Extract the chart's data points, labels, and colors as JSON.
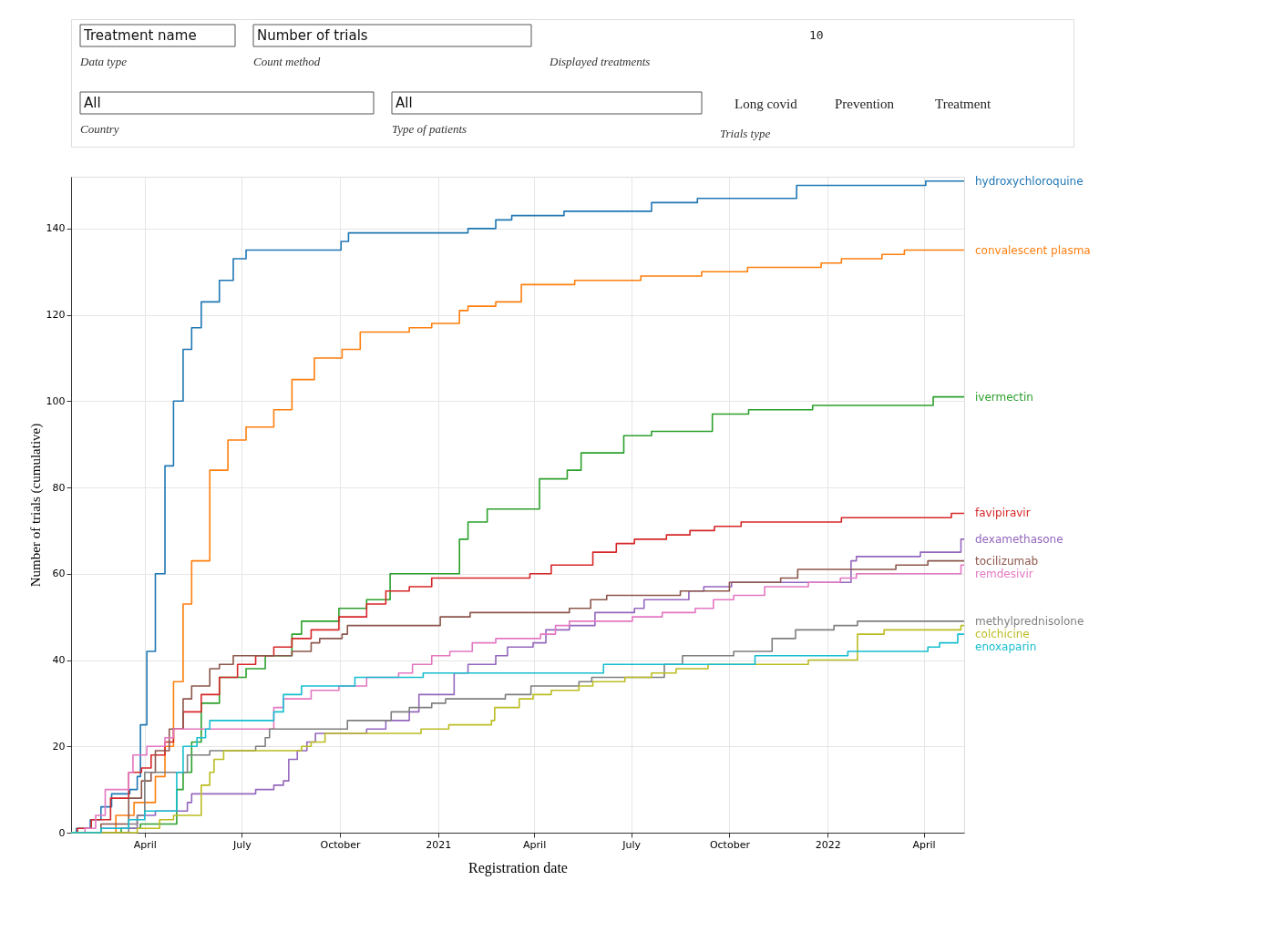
{
  "chart_data": {
    "type": "step",
    "xlabel": "Registration date",
    "ylabel": "Number of trials (cumulative)",
    "annotations": [
      "Treatment name",
      "Number of trials",
      "10",
      "Data type",
      "Count method",
      "Displayed treatments",
      "All",
      "All",
      "Country",
      "Type of patients",
      "Long covid",
      "Prevention",
      "Treatment",
      "Trials type"
    ],
    "xlim": [
      "2020-01-23",
      "2022-05-09"
    ],
    "ylim": [
      0,
      152
    ],
    "xticks": [
      {
        "value": "2020-04-01",
        "label": "April"
      },
      {
        "value": "2020-07-01",
        "label": "July"
      },
      {
        "value": "2020-10-01",
        "label": "October"
      },
      {
        "value": "2021-01-01",
        "label": "2021"
      },
      {
        "value": "2021-04-01",
        "label": "April"
      },
      {
        "value": "2021-07-01",
        "label": "July"
      },
      {
        "value": "2021-10-01",
        "label": "October"
      },
      {
        "value": "2022-01-01",
        "label": "2022"
      },
      {
        "value": "2022-04-01",
        "label": "April"
      }
    ],
    "yticks": [
      0,
      20,
      40,
      60,
      80,
      100,
      120,
      140
    ],
    "grid": true,
    "legend": false,
    "line_style": "solid",
    "marker": "none",
    "series": [
      {
        "name": "hydroxychloroquine",
        "color": "#1f77b4",
        "x": [
          "2020-01-23",
          "2020-01-28",
          "2020-02-10",
          "2020-02-20",
          "2020-03-01",
          "2020-03-18",
          "2020-03-25",
          "2020-03-28",
          "2020-04-03",
          "2020-04-11",
          "2020-04-20",
          "2020-04-28",
          "2020-05-07",
          "2020-05-15",
          "2020-05-24",
          "2020-06-10",
          "2020-06-23",
          "2020-07-05",
          "2020-10-02",
          "2020-10-09",
          "2021-01-29",
          "2021-02-24",
          "2021-03-11",
          "2021-04-29",
          "2021-07-20",
          "2021-09-01",
          "2021-12-03",
          "2022-04-03",
          "2022-05-09"
        ],
        "values": [
          0,
          1,
          3,
          6,
          9,
          10,
          13,
          25,
          42,
          60,
          85,
          100,
          112,
          117,
          123,
          128,
          133,
          135,
          137,
          139,
          140,
          142,
          143,
          144,
          146,
          147,
          150,
          151,
          151
        ]
      },
      {
        "name": "convalescent plasma",
        "color": "#ff7f0e",
        "x": [
          "2020-01-23",
          "2020-03-05",
          "2020-03-22",
          "2020-04-11",
          "2020-04-20",
          "2020-04-28",
          "2020-05-07",
          "2020-05-15",
          "2020-06-01",
          "2020-06-18",
          "2020-07-05",
          "2020-07-31",
          "2020-08-17",
          "2020-09-07",
          "2020-10-03",
          "2020-10-20",
          "2020-12-05",
          "2020-12-26",
          "2021-01-21",
          "2021-01-29",
          "2021-02-24",
          "2021-03-20",
          "2021-05-09",
          "2021-07-10",
          "2021-09-05",
          "2021-10-18",
          "2021-12-26",
          "2022-01-14",
          "2022-02-21",
          "2022-03-14",
          "2022-05-09"
        ],
        "values": [
          0,
          4,
          7,
          13,
          20,
          35,
          53,
          63,
          84,
          91,
          94,
          98,
          105,
          110,
          112,
          116,
          117,
          118,
          121,
          122,
          123,
          127,
          128,
          129,
          130,
          131,
          132,
          133,
          134,
          135,
          135
        ]
      },
      {
        "name": "ivermectin",
        "color": "#2ca02c",
        "x": [
          "2020-01-23",
          "2020-03-10",
          "2020-03-28",
          "2020-05-01",
          "2020-05-07",
          "2020-05-15",
          "2020-05-24",
          "2020-06-10",
          "2020-07-05",
          "2020-07-23",
          "2020-08-17",
          "2020-08-26",
          "2020-09-30",
          "2020-10-26",
          "2020-11-17",
          "2021-01-21",
          "2021-01-29",
          "2021-02-16",
          "2021-04-06",
          "2021-05-02",
          "2021-05-15",
          "2021-06-24",
          "2021-07-20",
          "2021-09-15",
          "2021-10-19",
          "2021-12-18",
          "2022-04-10",
          "2022-05-09"
        ],
        "values": [
          0,
          1,
          2,
          10,
          14,
          21,
          30,
          36,
          38,
          41,
          46,
          49,
          52,
          54,
          60,
          68,
          72,
          75,
          82,
          84,
          88,
          92,
          93,
          97,
          98,
          99,
          101,
          101
        ]
      },
      {
        "name": "favipiravir",
        "color": "#d62728",
        "x": [
          "2020-01-23",
          "2020-01-29",
          "2020-02-11",
          "2020-02-29",
          "2020-03-17",
          "2020-03-29",
          "2020-04-07",
          "2020-04-20",
          "2020-04-28",
          "2020-05-07",
          "2020-05-24",
          "2020-06-10",
          "2020-06-27",
          "2020-07-14",
          "2020-07-31",
          "2020-08-17",
          "2020-09-04",
          "2020-09-30",
          "2020-10-26",
          "2020-11-13",
          "2020-12-05",
          "2020-12-26",
          "2021-03-28",
          "2021-04-17",
          "2021-05-26",
          "2021-06-17",
          "2021-07-04",
          "2021-08-03",
          "2021-08-25",
          "2021-09-17",
          "2021-10-12",
          "2022-01-14",
          "2022-04-27",
          "2022-05-09"
        ],
        "values": [
          0,
          1,
          3,
          8,
          14,
          15,
          18,
          21,
          24,
          28,
          32,
          36,
          39,
          41,
          43,
          45,
          47,
          50,
          53,
          56,
          57,
          59,
          60,
          62,
          65,
          67,
          68,
          69,
          70,
          71,
          72,
          73,
          74,
          74
        ]
      },
      {
        "name": "dexamethasone",
        "color": "#9467bd",
        "x": [
          "2020-01-23",
          "2020-02-20",
          "2020-03-25",
          "2020-04-11",
          "2020-05-11",
          "2020-05-15",
          "2020-07-14",
          "2020-07-31",
          "2020-08-09",
          "2020-08-14",
          "2020-08-22",
          "2020-08-31",
          "2020-09-08",
          "2020-10-26",
          "2020-11-13",
          "2020-12-05",
          "2020-12-14",
          "2021-01-16",
          "2021-01-29",
          "2021-02-24",
          "2021-03-07",
          "2021-03-31",
          "2021-04-12",
          "2021-05-04",
          "2021-05-28",
          "2021-07-04",
          "2021-07-13",
          "2021-08-24",
          "2021-09-07",
          "2021-10-03",
          "2022-01-23",
          "2022-01-28",
          "2022-03-29",
          "2022-05-06",
          "2022-05-09"
        ],
        "values": [
          0,
          1,
          4,
          5,
          7,
          9,
          10,
          11,
          12,
          17,
          19,
          21,
          23,
          24,
          26,
          28,
          32,
          37,
          39,
          41,
          43,
          44,
          47,
          48,
          51,
          52,
          54,
          56,
          57,
          58,
          63,
          64,
          65,
          68,
          68
        ]
      },
      {
        "name": "tocilizumab",
        "color": "#8c564b",
        "x": [
          "2020-01-23",
          "2020-02-20",
          "2020-03-17",
          "2020-03-29",
          "2020-04-07",
          "2020-04-11",
          "2020-04-24",
          "2020-05-07",
          "2020-05-15",
          "2020-06-01",
          "2020-06-10",
          "2020-06-23",
          "2020-08-17",
          "2020-09-04",
          "2020-09-12",
          "2020-10-03",
          "2020-10-08",
          "2021-01-03",
          "2021-01-31",
          "2021-05-04",
          "2021-05-24",
          "2021-06-08",
          "2021-08-16",
          "2021-10-01",
          "2021-11-18",
          "2021-12-04",
          "2022-03-06",
          "2022-04-05",
          "2022-05-09"
        ],
        "values": [
          0,
          2,
          8,
          12,
          14,
          19,
          24,
          31,
          34,
          38,
          39,
          41,
          42,
          44,
          45,
          46,
          48,
          50,
          51,
          52,
          54,
          55,
          56,
          58,
          59,
          61,
          62,
          63,
          63
        ]
      },
      {
        "name": "remdesivir",
        "color": "#e377c2",
        "x": [
          "2020-01-23",
          "2020-02-05",
          "2020-02-15",
          "2020-02-24",
          "2020-03-17",
          "2020-03-21",
          "2020-04-03",
          "2020-04-20",
          "2020-04-28",
          "2020-07-31",
          "2020-08-09",
          "2020-09-04",
          "2020-09-30",
          "2020-10-26",
          "2020-11-25",
          "2020-12-08",
          "2020-12-26",
          "2021-01-12",
          "2021-02-02",
          "2021-02-24",
          "2021-04-07",
          "2021-04-21",
          "2021-05-04",
          "2021-07-02",
          "2021-07-30",
          "2021-08-30",
          "2021-09-16",
          "2021-10-05",
          "2021-11-03",
          "2021-12-14",
          "2022-01-13",
          "2022-01-28",
          "2022-05-06",
          "2022-05-09"
        ],
        "values": [
          0,
          1,
          4,
          10,
          14,
          18,
          20,
          22,
          24,
          29,
          31,
          33,
          34,
          36,
          37,
          39,
          41,
          42,
          44,
          45,
          46,
          48,
          49,
          50,
          51,
          52,
          54,
          55,
          57,
          58,
          59,
          60,
          62,
          62
        ]
      },
      {
        "name": "methylprednisolone",
        "color": "#7f7f7f",
        "x": [
          "2020-01-23",
          "2020-03-17",
          "2020-03-25",
          "2020-04-01",
          "2020-05-11",
          "2020-06-01",
          "2020-07-14",
          "2020-07-23",
          "2020-07-27",
          "2020-10-08",
          "2020-11-18",
          "2020-12-05",
          "2020-12-26",
          "2021-01-08",
          "2021-03-05",
          "2021-03-29",
          "2021-05-13",
          "2021-05-25",
          "2021-08-01",
          "2021-08-18",
          "2021-10-05",
          "2021-11-10",
          "2021-12-02",
          "2022-01-07",
          "2022-01-29",
          "2022-05-09"
        ],
        "values": [
          0,
          2,
          4,
          14,
          18,
          19,
          20,
          22,
          24,
          26,
          28,
          29,
          30,
          31,
          32,
          34,
          35,
          36,
          39,
          41,
          42,
          45,
          47,
          48,
          49,
          49
        ]
      },
      {
        "name": "colchicine",
        "color": "#bcbd22",
        "x": [
          "2020-01-23",
          "2020-03-25",
          "2020-04-15",
          "2020-04-28",
          "2020-05-24",
          "2020-06-01",
          "2020-06-05",
          "2020-06-14",
          "2020-08-26",
          "2020-09-04",
          "2020-09-17",
          "2020-12-16",
          "2021-01-11",
          "2021-02-20",
          "2021-02-23",
          "2021-03-18",
          "2021-03-31",
          "2021-04-17",
          "2021-05-13",
          "2021-05-26",
          "2021-06-25",
          "2021-07-20",
          "2021-08-12",
          "2021-09-11",
          "2021-12-14",
          "2022-01-29",
          "2022-02-23",
          "2022-05-06",
          "2022-05-09"
        ],
        "values": [
          0,
          1,
          3,
          4,
          11,
          14,
          17,
          19,
          20,
          21,
          23,
          24,
          25,
          26,
          29,
          31,
          32,
          33,
          34,
          35,
          36,
          37,
          38,
          39,
          40,
          46,
          47,
          48,
          48
        ]
      },
      {
        "name": "enoxaparin",
        "color": "#17becf",
        "x": [
          "2020-01-23",
          "2020-02-20",
          "2020-03-17",
          "2020-04-01",
          "2020-05-01",
          "2020-05-07",
          "2020-05-20",
          "2020-05-28",
          "2020-06-01",
          "2020-07-31",
          "2020-08-09",
          "2020-08-26",
          "2020-10-15",
          "2020-12-18",
          "2021-06-05",
          "2021-10-25",
          "2022-01-20",
          "2022-04-05",
          "2022-04-16",
          "2022-05-03",
          "2022-05-09"
        ],
        "values": [
          0,
          1,
          3,
          5,
          14,
          20,
          22,
          24,
          26,
          28,
          32,
          34,
          36,
          37,
          39,
          41,
          42,
          43,
          44,
          46,
          46
        ]
      }
    ]
  }
}
